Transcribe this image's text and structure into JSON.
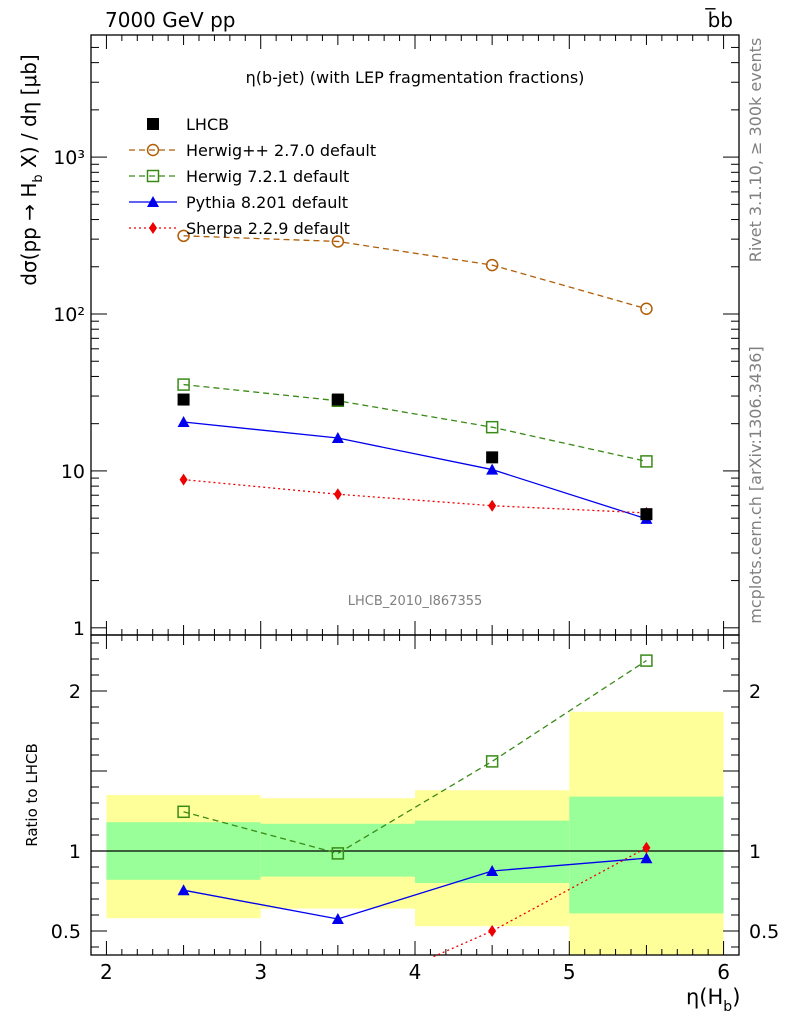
{
  "header": {
    "left": "7000 GeV pp",
    "right": "b̅b"
  },
  "side_text": {
    "rivet": "Rivet 3.1.10, ≥ 300k events",
    "mcplots": "mcplots.cern.ch [arXiv:1306.3436]"
  },
  "chart_data": [
    {
      "type": "line",
      "panel": "main",
      "title": "η(b-jet) (with LEP fragmentation fractions)",
      "watermark": "LHCB_2010_I867355",
      "xlabel": "η(H_b)",
      "ylabel": "dσ(pp → H_b X) / dη [μb]",
      "yscale": "log",
      "ylim": [
        0.9,
        6000
      ],
      "xlim": [
        1.9,
        6.1
      ],
      "yticks": [
        {
          "value": 1,
          "label": "1"
        },
        {
          "value": 10,
          "label": "10"
        },
        {
          "value": 100,
          "label": "10²"
        },
        {
          "value": 1000,
          "label": "10³"
        }
      ],
      "legend_position": "top-left",
      "series": [
        {
          "name": "LHCB",
          "color": "#000000",
          "marker": "square-filled",
          "line": "none",
          "x": [
            2.5,
            3.5,
            4.5,
            5.5
          ],
          "y": [
            28.5,
            28.5,
            12.2,
            5.3
          ]
        },
        {
          "name": "Herwig++ 2.7.0 default",
          "color": "#b15e07",
          "marker": "circle-open",
          "line": "dashed",
          "x": [
            2.5,
            3.5,
            4.5,
            5.5
          ],
          "y": [
            315,
            290,
            205,
            108
          ]
        },
        {
          "name": "Herwig 7.2.1 default",
          "color": "#3a8a17",
          "marker": "square-open",
          "line": "dashed",
          "x": [
            2.5,
            3.5,
            4.5,
            5.5
          ],
          "y": [
            35.5,
            28.0,
            19.0,
            11.5
          ]
        },
        {
          "name": "Pythia 8.201 default",
          "color": "#0000ee",
          "marker": "triangle-filled",
          "line": "solid",
          "x": [
            2.5,
            3.5,
            4.5,
            5.5
          ],
          "y": [
            20.5,
            16.2,
            10.2,
            4.95
          ]
        },
        {
          "name": "Sherpa 2.2.9 default",
          "color": "#ee0000",
          "marker": "diamond-filled",
          "line": "dotted",
          "x": [
            2.5,
            3.5,
            4.5,
            5.5
          ],
          "y": [
            8.8,
            7.1,
            6.0,
            5.4
          ]
        }
      ]
    },
    {
      "type": "line",
      "panel": "ratio",
      "xlabel": "η(H_b)",
      "ylabel": "Ratio to LHCB",
      "ylim": [
        0.35,
        2.35
      ],
      "xlim": [
        1.9,
        6.1
      ],
      "xticks": [
        2,
        3,
        4,
        5,
        6
      ],
      "yticks": [
        {
          "value": 0.5,
          "label": "0.5"
        },
        {
          "value": 1,
          "label": "1"
        },
        {
          "value": 2,
          "label": "2"
        }
      ],
      "bands": [
        {
          "x0": 2,
          "x1": 3,
          "inner": [
            0.82,
            1.18
          ],
          "outer": [
            0.58,
            1.35
          ]
        },
        {
          "x0": 3,
          "x1": 4,
          "inner": [
            0.84,
            1.17
          ],
          "outer": [
            0.64,
            1.33
          ]
        },
        {
          "x0": 4,
          "x1": 5,
          "inner": [
            0.8,
            1.19
          ],
          "outer": [
            0.53,
            1.38
          ]
        },
        {
          "x0": 5,
          "x1": 6,
          "inner": [
            0.61,
            1.34
          ],
          "outer": [
            0.3,
            1.87
          ]
        }
      ],
      "band_colors": {
        "inner": "#99ff99",
        "outer": "#ffff99"
      },
      "series": [
        {
          "name": "Herwig 7.2.1 default",
          "color": "#3a8a17",
          "marker": "square-open",
          "line": "dashed",
          "x": [
            2.5,
            3.5,
            4.5,
            5.5
          ],
          "y": [
            1.245,
            0.985,
            1.56,
            2.19
          ]
        },
        {
          "name": "Pythia 8.201 default",
          "color": "#0000ee",
          "marker": "triangle-filled",
          "line": "solid",
          "x": [
            2.5,
            3.5,
            4.5,
            5.5
          ],
          "y": [
            0.755,
            0.575,
            0.875,
            0.955
          ]
        },
        {
          "name": "Sherpa 2.2.9 default",
          "color": "#ee0000",
          "marker": "diamond-filled",
          "line": "dotted",
          "x": [
            4.12,
            4.5,
            5.5
          ],
          "y": [
            0.34,
            0.5,
            1.02
          ]
        }
      ]
    }
  ]
}
